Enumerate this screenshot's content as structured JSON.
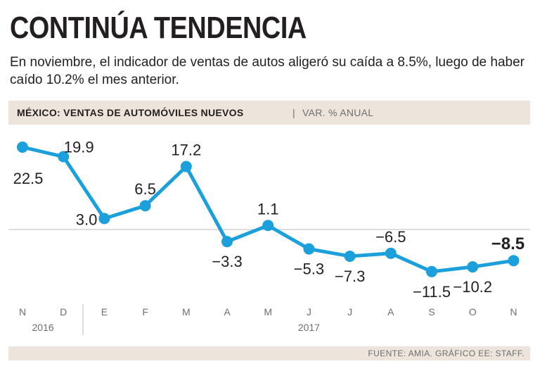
{
  "header": {
    "title": "CONTINÚA TENDENCIA",
    "subtitle": "En noviembre, el indicador de ventas de autos aligeró su caída a 8.5%, luego de haber caído 10.2% el mes anterior.",
    "chart_label": "MÉXICO: VENTAS DE AUTOMÓVILES NUEVOS",
    "separator": "|",
    "chart_sublabel": "VAR. % ANUAL"
  },
  "footer": {
    "source": "FUENTE: AMIA. GRÁFICO EE: STAFF."
  },
  "colors": {
    "line": "#1ba0dc",
    "band": "#ede5dc",
    "text": "#231f20",
    "muted": "#6d6e70"
  },
  "chart_data": {
    "type": "line",
    "title": "MÉXICO: VENTAS DE AUTOMÓVILES NUEVOS",
    "ylabel": "VAR. % ANUAL",
    "categories": [
      "N",
      "D",
      "E",
      "F",
      "M",
      "A",
      "M",
      "J",
      "J",
      "A",
      "S",
      "O",
      "N"
    ],
    "year_labels": [
      {
        "label": "2016",
        "from_index": 0,
        "to_index": 1
      },
      {
        "label": "2017",
        "from_index": 2,
        "to_index": 12
      }
    ],
    "values": [
      22.5,
      19.9,
      3.0,
      6.5,
      17.2,
      -3.3,
      1.1,
      -5.3,
      -7.3,
      -6.5,
      -11.5,
      -10.2,
      -8.5
    ],
    "value_labels": [
      "22.5",
      "19.9",
      "3.0",
      "6.5",
      "17.2",
      "-3.3",
      "1.1",
      "-5.3",
      "-7.3",
      "-6.5",
      "-11.5",
      "-10.2",
      "-8.5"
    ],
    "label_positions": [
      "below",
      "above",
      "left",
      "above",
      "above",
      "below",
      "above",
      "below",
      "below",
      "above",
      "below",
      "below",
      "above"
    ],
    "ylim": [
      -15,
      25
    ],
    "zero_line": true,
    "grid": false
  }
}
